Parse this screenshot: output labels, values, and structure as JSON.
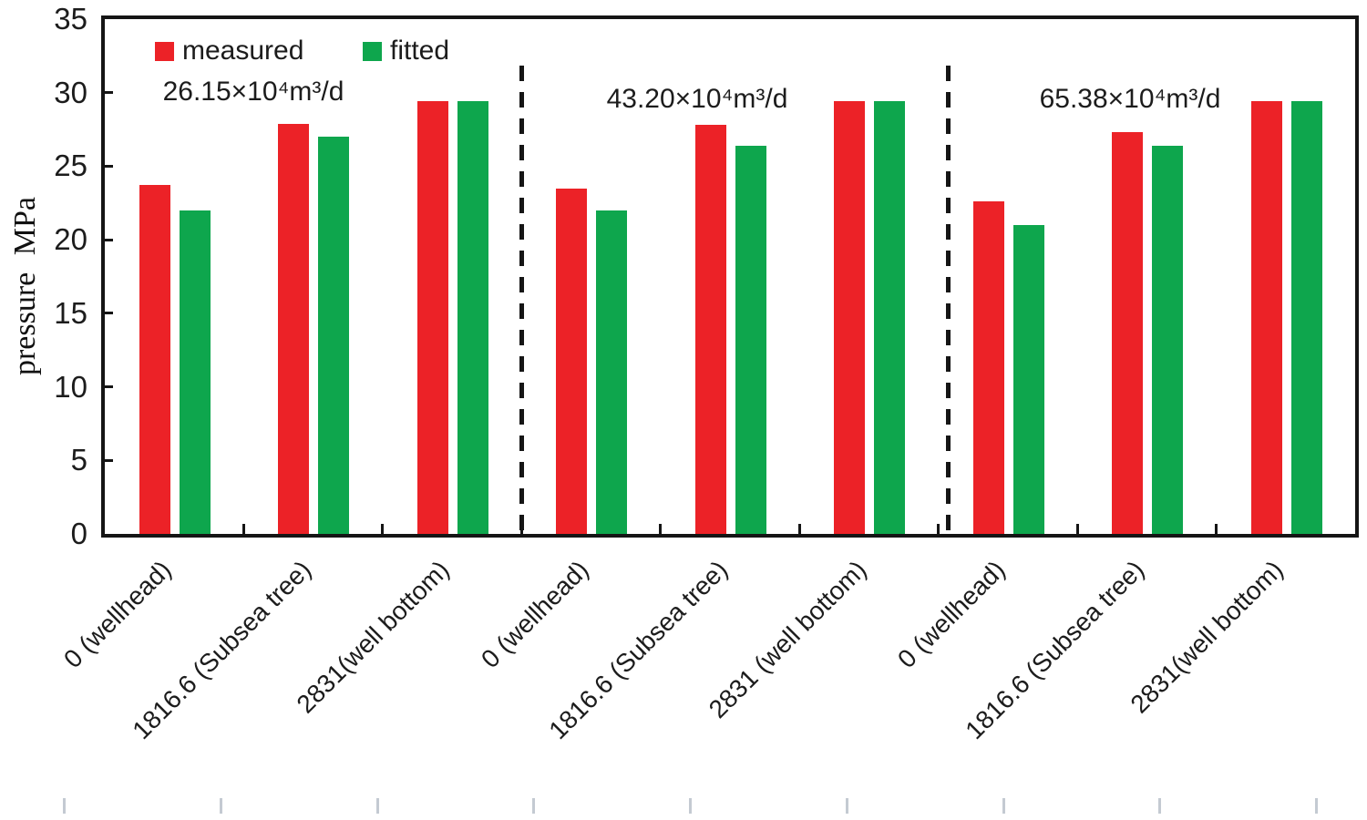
{
  "figure": {
    "background": "#ffffff"
  },
  "chart_data": {
    "type": "bar",
    "title": "",
    "xlabel": "",
    "ylabel": "pressure MPa",
    "ylim": [
      0,
      35
    ],
    "yticks": [
      0,
      5,
      10,
      15,
      20,
      25,
      30,
      35
    ],
    "grid": false,
    "legend_position": "top-left-inside",
    "categories": [
      "0 (wellhead)",
      "1816.6 (Subsea tree)",
      "2831(well bottom)",
      "0 (wellhead)",
      "1816.6 (Subsea tree)",
      "2831 (well bottom)",
      "0 (wellhead)",
      "1816.6 (Subsea tree)",
      "2831(well bottom)"
    ],
    "series": [
      {
        "name": "measured",
        "color": "#ec2227",
        "values": [
          23.7,
          27.9,
          29.4,
          23.5,
          27.8,
          29.4,
          22.6,
          27.3,
          29.4
        ]
      },
      {
        "name": "fitted",
        "color": "#0ea64d",
        "values": [
          22.0,
          27.0,
          29.4,
          22.0,
          26.4,
          29.4,
          21.0,
          26.4,
          29.4
        ]
      }
    ],
    "groups": [
      {
        "label": "26.15×10⁴m³/d",
        "categories_span": [
          0,
          2
        ]
      },
      {
        "label": "43.20×10⁴m³/d",
        "categories_span": [
          3,
          5
        ]
      },
      {
        "label": "65.38×10⁴m³/d",
        "categories_span": [
          6,
          8
        ]
      }
    ],
    "separators_after_category": [
      2,
      5
    ],
    "axis_color": "#151515",
    "separator_color": "#151515",
    "minor_bottom_tick_color": "#c4cad2",
    "text_color": "#1c1c1c"
  }
}
